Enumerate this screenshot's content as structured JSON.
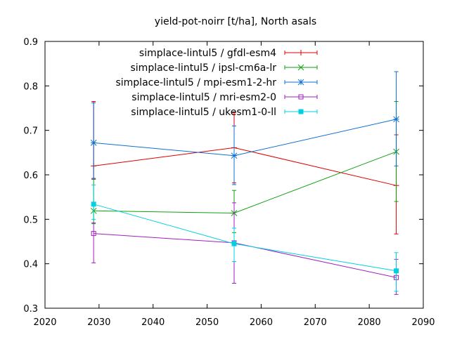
{
  "chart_data": {
    "type": "line",
    "title": "yield-pot-noirr [t/ha], North asals",
    "xlabel": "",
    "ylabel": "",
    "xlim": [
      2020,
      2090
    ],
    "ylim": [
      0.3,
      0.9
    ],
    "x_ticks": [
      "2020",
      "2030",
      "2040",
      "2050",
      "2060",
      "2070",
      "2080",
      "2090"
    ],
    "y_ticks": [
      "0.3",
      "0.4",
      "0.5",
      "0.6",
      "0.7",
      "0.8",
      "0.9"
    ],
    "grid": false,
    "legend_position": "top-right",
    "x": [
      2029,
      2055,
      2085
    ],
    "series": [
      {
        "name": "simplace-lintul5 / gfdl-esm4",
        "color": "#e00000",
        "marker": "plus",
        "values": [
          0.62,
          0.661,
          0.576
        ],
        "err_low": [
          0.592,
          0.582,
          0.467
        ],
        "err_high": [
          0.765,
          0.74,
          0.69
        ]
      },
      {
        "name": "simplace-lintul5 / ipsl-cm6a-lr",
        "color": "#10a010",
        "marker": "cross",
        "values": [
          0.519,
          0.514,
          0.652
        ],
        "err_low": [
          0.49,
          0.47,
          0.54
        ],
        "err_high": [
          0.59,
          0.565,
          0.765
        ]
      },
      {
        "name": "simplace-lintul5 / mpi-esm1-2-hr",
        "color": "#1070d0",
        "marker": "star",
        "values": [
          0.672,
          0.643,
          0.725
        ],
        "err_low": [
          0.59,
          0.578,
          0.62
        ],
        "err_high": [
          0.762,
          0.71,
          0.832
        ]
      },
      {
        "name": "simplace-lintul5 / mri-esm2-0",
        "color": "#a020c0",
        "marker": "open-square",
        "values": [
          0.468,
          0.447,
          0.369
        ],
        "err_low": [
          0.402,
          0.356,
          0.331
        ],
        "err_high": [
          0.492,
          0.537,
          0.41
        ]
      },
      {
        "name": "simplace-lintul5 / ukesm1-0-ll",
        "color": "#00d0e0",
        "marker": "filled-square",
        "values": [
          0.534,
          0.445,
          0.384
        ],
        "err_low": [
          0.5,
          0.405,
          0.338
        ],
        "err_high": [
          0.577,
          0.48,
          0.425
        ]
      }
    ]
  }
}
